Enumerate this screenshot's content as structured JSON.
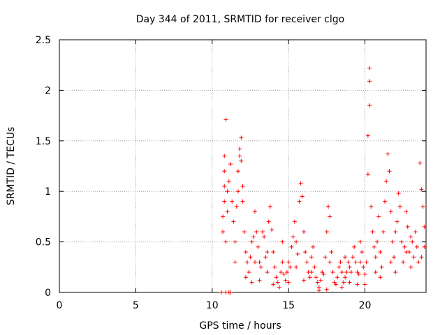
{
  "chart_data": {
    "type": "scatter",
    "title": "Day 344 of 2011, SRMTID for receiver clgo",
    "xlabel": "GPS time / hours",
    "ylabel": "SRMTID / TECUs",
    "xlim": [
      0,
      24
    ],
    "ylim": [
      0,
      2.5
    ],
    "xticks": [
      0,
      5,
      10,
      15,
      20
    ],
    "yticks": [
      0,
      0.5,
      1,
      1.5,
      2,
      2.5
    ],
    "ytick_labels": [
      "0",
      "0.5",
      "1",
      "1.5",
      "2",
      "2.5"
    ],
    "grid": true,
    "marker": "+",
    "series": [
      {
        "name": "SRMTID",
        "color": "#ff0000",
        "points": [
          [
            10.6,
            0.0
          ],
          [
            10.9,
            0.0
          ],
          [
            11.1,
            0.0
          ],
          [
            11.2,
            0.0
          ],
          [
            10.7,
            0.6
          ],
          [
            10.7,
            0.75
          ],
          [
            10.8,
            0.9
          ],
          [
            10.8,
            1.05
          ],
          [
            10.8,
            1.2
          ],
          [
            10.8,
            1.35
          ],
          [
            10.9,
            1.71
          ],
          [
            10.9,
            0.5
          ],
          [
            11.0,
            0.8
          ],
          [
            11.0,
            1.0
          ],
          [
            11.1,
            1.1
          ],
          [
            11.2,
            1.27
          ],
          [
            11.3,
            0.9
          ],
          [
            11.4,
            0.7
          ],
          [
            11.5,
            0.5
          ],
          [
            11.5,
            0.3
          ],
          [
            11.6,
            0.85
          ],
          [
            11.7,
            1.0
          ],
          [
            11.7,
            1.2
          ],
          [
            11.8,
            1.35
          ],
          [
            11.8,
            1.42
          ],
          [
            11.9,
            1.53
          ],
          [
            11.9,
            1.3
          ],
          [
            12.0,
            1.05
          ],
          [
            12.0,
            0.9
          ],
          [
            12.1,
            0.6
          ],
          [
            12.2,
            0.4
          ],
          [
            12.3,
            0.3
          ],
          [
            12.4,
            0.2
          ],
          [
            12.5,
            0.35
          ],
          [
            12.6,
            0.5
          ],
          [
            12.7,
            0.55
          ],
          [
            12.8,
            0.8
          ],
          [
            12.9,
            0.6
          ],
          [
            13.0,
            0.45
          ],
          [
            13.1,
            0.3
          ],
          [
            13.2,
            0.25
          ],
          [
            13.3,
            0.6
          ],
          [
            13.4,
            0.55
          ],
          [
            13.5,
            0.35
          ],
          [
            13.6,
            0.2
          ],
          [
            13.7,
            0.7
          ],
          [
            13.8,
            0.85
          ],
          [
            13.9,
            0.62
          ],
          [
            14.0,
            0.4
          ],
          [
            14.1,
            0.25
          ],
          [
            14.2,
            0.15
          ],
          [
            14.3,
            0.1
          ],
          [
            14.4,
            0.05
          ],
          [
            14.5,
            0.2
          ],
          [
            14.6,
            0.3
          ],
          [
            14.7,
            0.18
          ],
          [
            14.8,
            0.12
          ],
          [
            14.9,
            0.2
          ],
          [
            15.0,
            0.3
          ],
          [
            15.1,
            0.25
          ],
          [
            15.2,
            0.45
          ],
          [
            15.3,
            0.55
          ],
          [
            15.4,
            0.7
          ],
          [
            15.5,
            0.5
          ],
          [
            15.6,
            0.38
          ],
          [
            15.7,
            0.9
          ],
          [
            15.8,
            1.08
          ],
          [
            15.9,
            0.95
          ],
          [
            16.0,
            0.6
          ],
          [
            16.1,
            0.4
          ],
          [
            16.2,
            0.3
          ],
          [
            16.3,
            0.2
          ],
          [
            16.4,
            0.15
          ],
          [
            16.5,
            0.35
          ],
          [
            16.6,
            0.45
          ],
          [
            16.7,
            0.25
          ],
          [
            16.8,
            0.15
          ],
          [
            16.9,
            0.1
          ],
          [
            17.0,
            0.05
          ],
          [
            17.1,
            0.12
          ],
          [
            17.2,
            0.2
          ],
          [
            17.3,
            0.18
          ],
          [
            17.4,
            0.35
          ],
          [
            17.5,
            0.6
          ],
          [
            17.6,
            0.85
          ],
          [
            17.7,
            0.75
          ],
          [
            17.8,
            0.4
          ],
          [
            17.9,
            0.2
          ],
          [
            18.0,
            0.1
          ],
          [
            18.1,
            0.08
          ],
          [
            18.2,
            0.15
          ],
          [
            18.3,
            0.25
          ],
          [
            18.4,
            0.3
          ],
          [
            18.5,
            0.2
          ],
          [
            18.6,
            0.1
          ],
          [
            18.7,
            0.15
          ],
          [
            18.8,
            0.2
          ],
          [
            18.9,
            0.3
          ],
          [
            19.0,
            0.25
          ],
          [
            19.1,
            0.2
          ],
          [
            19.2,
            0.35
          ],
          [
            19.3,
            0.45
          ],
          [
            19.4,
            0.3
          ],
          [
            19.5,
            0.2
          ],
          [
            19.6,
            0.18
          ],
          [
            19.7,
            0.3
          ],
          [
            19.8,
            0.4
          ],
          [
            19.9,
            0.25
          ],
          [
            20.0,
            0.18
          ],
          [
            20.1,
            0.3
          ],
          [
            20.2,
            1.17
          ],
          [
            20.2,
            1.55
          ],
          [
            20.3,
            1.85
          ],
          [
            20.3,
            2.09
          ],
          [
            20.3,
            2.22
          ],
          [
            20.4,
            0.85
          ],
          [
            20.5,
            0.6
          ],
          [
            20.6,
            0.45
          ],
          [
            20.7,
            0.35
          ],
          [
            20.8,
            0.5
          ],
          [
            20.9,
            0.75
          ],
          [
            21.0,
            0.4
          ],
          [
            21.1,
            0.25
          ],
          [
            21.2,
            0.6
          ],
          [
            21.3,
            0.9
          ],
          [
            21.4,
            1.1
          ],
          [
            21.5,
            1.37
          ],
          [
            21.6,
            1.2
          ],
          [
            21.7,
            0.8
          ],
          [
            21.8,
            0.5
          ],
          [
            21.9,
            0.35
          ],
          [
            22.0,
            0.6
          ],
          [
            22.1,
            0.7
          ],
          [
            22.2,
            0.98
          ],
          [
            22.3,
            0.85
          ],
          [
            22.4,
            0.5
          ],
          [
            22.5,
            0.3
          ],
          [
            22.6,
            0.45
          ],
          [
            22.7,
            0.8
          ],
          [
            22.8,
            0.65
          ],
          [
            22.9,
            0.4
          ],
          [
            23.0,
            0.55
          ],
          [
            23.1,
            0.5
          ],
          [
            23.2,
            0.35
          ],
          [
            23.3,
            0.6
          ],
          [
            23.4,
            0.45
          ],
          [
            23.5,
            0.3
          ],
          [
            23.6,
            1.28
          ],
          [
            23.7,
            1.02
          ],
          [
            23.8,
            0.85
          ],
          [
            23.9,
            0.65
          ],
          [
            23.9,
            0.45
          ],
          [
            12.2,
            0.15
          ],
          [
            12.6,
            0.1
          ],
          [
            13.1,
            0.12
          ],
          [
            14.0,
            0.08
          ],
          [
            15.0,
            0.1
          ],
          [
            16.0,
            0.12
          ],
          [
            17.0,
            0.02
          ],
          [
            17.5,
            0.03
          ],
          [
            18.5,
            0.05
          ],
          [
            19.0,
            0.1
          ],
          [
            19.5,
            0.08
          ],
          [
            20.0,
            0.08
          ],
          [
            21.0,
            0.15
          ],
          [
            22.0,
            0.2
          ],
          [
            23.0,
            0.25
          ],
          [
            12.8,
            0.3
          ],
          [
            13.6,
            0.4
          ],
          [
            14.6,
            0.5
          ],
          [
            15.5,
            0.25
          ],
          [
            16.5,
            0.2
          ],
          [
            17.7,
            0.3
          ],
          [
            18.7,
            0.35
          ],
          [
            19.7,
            0.5
          ],
          [
            20.7,
            0.2
          ],
          [
            21.7,
            0.3
          ],
          [
            22.7,
            0.4
          ],
          [
            23.7,
            0.35
          ]
        ]
      }
    ]
  }
}
